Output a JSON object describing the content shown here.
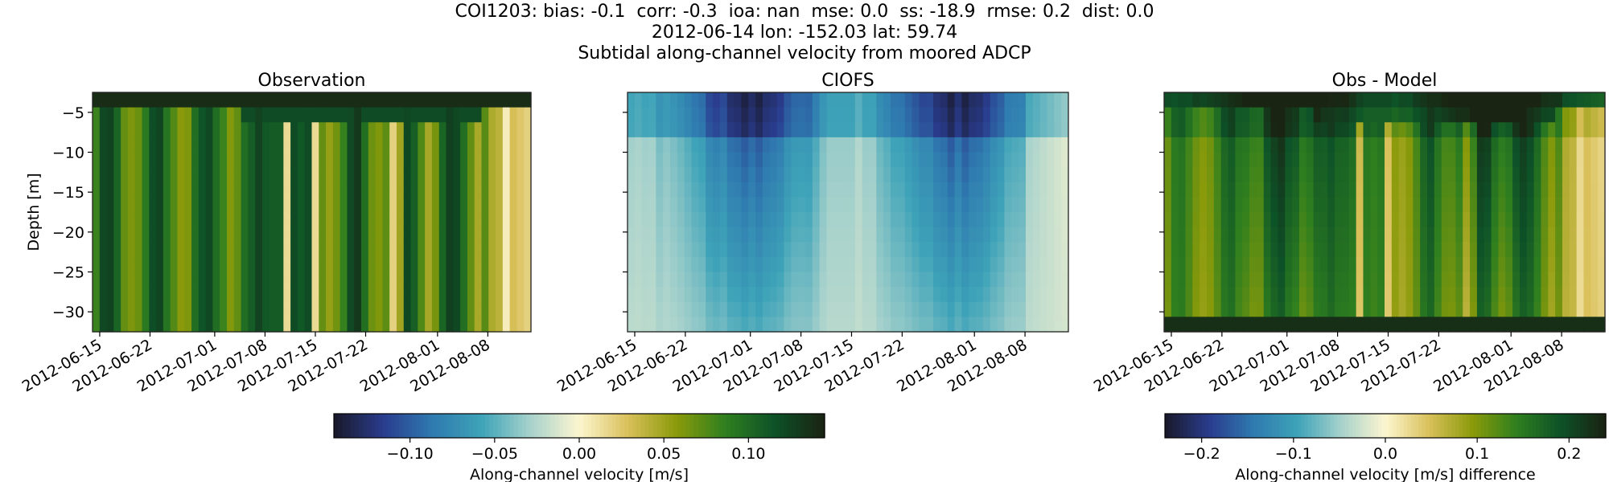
{
  "header": {
    "line1": "COI1203: bias: -0.1  corr: -0.3  ioa: nan  mse: 0.0  ss: -18.9  rmse: 0.2  dist: 0.0",
    "line2": "2012-06-14 lon: -152.03 lat: 59.74",
    "line3": "Subtidal along-channel velocity from moored ADCP"
  },
  "colors": {
    "cmap": [
      "#1a1a2e",
      "#2a3d8f",
      "#2f7bb0",
      "#3ea3b8",
      "#a8d2cc",
      "#fdf6d0",
      "#d9c05a",
      "#8a9a0a",
      "#2f7f1f",
      "#0d5228",
      "#1a2412"
    ],
    "dense_frame": "#222222"
  },
  "chart_data": [
    {
      "type": "heatmap",
      "title": "Observation",
      "xlabel": "",
      "ylabel": "Depth [m]",
      "x_ticks": [
        "2012-06-15",
        "2012-06-22",
        "2012-07-01",
        "2012-07-08",
        "2012-07-15",
        "2012-07-22",
        "2012-08-01",
        "2012-08-08"
      ],
      "x_range": [
        "2012-06-14",
        "2012-08-14"
      ],
      "y_ticks": [
        -5,
        -10,
        -15,
        -20,
        -25,
        -30
      ],
      "y_range": [
        -32.5,
        -2.5
      ],
      "colorbar": "shared_velocity",
      "field": "obs",
      "description_values": "along-channel velocity, m/s, range approx -0.02 to 0.15"
    },
    {
      "type": "heatmap",
      "title": "CIOFS",
      "xlabel": "",
      "ylabel": "",
      "x_ticks": [
        "2012-06-15",
        "2012-06-22",
        "2012-07-01",
        "2012-07-08",
        "2012-07-15",
        "2012-07-22",
        "2012-08-01",
        "2012-08-08"
      ],
      "x_range": [
        "2012-06-14",
        "2012-08-14"
      ],
      "y_range": [
        -32.5,
        -2.5
      ],
      "colorbar": "shared_velocity",
      "field": "model",
      "description_values": "along-channel velocity, m/s, range approx -0.14 to -0.01"
    },
    {
      "type": "heatmap",
      "title": "Obs - Model",
      "xlabel": "",
      "ylabel": "",
      "x_ticks": [
        "2012-06-15",
        "2012-06-22",
        "2012-07-01",
        "2012-07-08",
        "2012-07-15",
        "2012-07-22",
        "2012-08-01",
        "2012-08-08"
      ],
      "x_range": [
        "2012-06-14",
        "2012-08-14"
      ],
      "y_range": [
        -32.5,
        -2.5
      ],
      "colorbar": "difference",
      "field": "diff",
      "description_values": "difference m/s, range approx 0.0 to 0.24"
    }
  ],
  "colorbars": {
    "shared_velocity": {
      "label": "Along-channel velocity [m/s]",
      "range": [
        -0.145,
        0.145
      ],
      "ticks": [
        -0.1,
        -0.05,
        0.0,
        0.05,
        0.1
      ],
      "tick_labels": [
        "−0.10",
        "−0.05",
        "0.00",
        "0.05",
        "0.10"
      ]
    },
    "difference": {
      "label": "Along-channel velocity [m/s] difference",
      "range": [
        -0.24,
        0.24
      ],
      "ticks": [
        -0.2,
        -0.1,
        0.0,
        0.1,
        0.2
      ],
      "tick_labels": [
        "−0.2",
        "−0.1",
        "0.0",
        "0.1",
        "0.2"
      ]
    }
  },
  "y_tick_labels": [
    "−5",
    "−10",
    "−15",
    "−20",
    "−25",
    "−30"
  ]
}
